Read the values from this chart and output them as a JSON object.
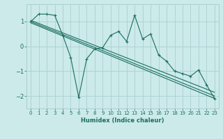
{
  "xlabel": "Humidex (Indice chaleur)",
  "background_color": "#cceaea",
  "grid_color": "#aacfcf",
  "line_color": "#1a6e5e",
  "xlim": [
    -0.5,
    23.5
  ],
  "ylim": [
    -2.5,
    1.7
  ],
  "yticks": [
    -2,
    -1,
    0,
    1
  ],
  "xticks": [
    0,
    1,
    2,
    3,
    4,
    5,
    6,
    7,
    8,
    9,
    10,
    11,
    12,
    13,
    14,
    15,
    16,
    17,
    18,
    19,
    20,
    21,
    22,
    23
  ],
  "main_x": [
    0,
    1,
    2,
    3,
    4,
    5,
    6,
    7,
    8,
    9,
    10,
    11,
    12,
    13,
    14,
    15,
    16,
    17,
    18,
    19,
    20,
    21,
    22,
    23
  ],
  "main_y": [
    1.0,
    1.3,
    1.3,
    1.25,
    0.45,
    -0.45,
    -2.05,
    -0.5,
    -0.1,
    -0.05,
    0.45,
    0.6,
    0.2,
    1.25,
    0.3,
    0.5,
    -0.35,
    -0.6,
    -1.0,
    -1.1,
    -1.2,
    -0.95,
    -1.55,
    -2.1
  ],
  "trend_lines": [
    {
      "x": [
        0,
        23
      ],
      "y": [
        1.05,
        -1.85
      ]
    },
    {
      "x": [
        0,
        23
      ],
      "y": [
        1.0,
        -2.0
      ]
    },
    {
      "x": [
        0,
        23
      ],
      "y": [
        0.95,
        -2.1
      ]
    }
  ]
}
